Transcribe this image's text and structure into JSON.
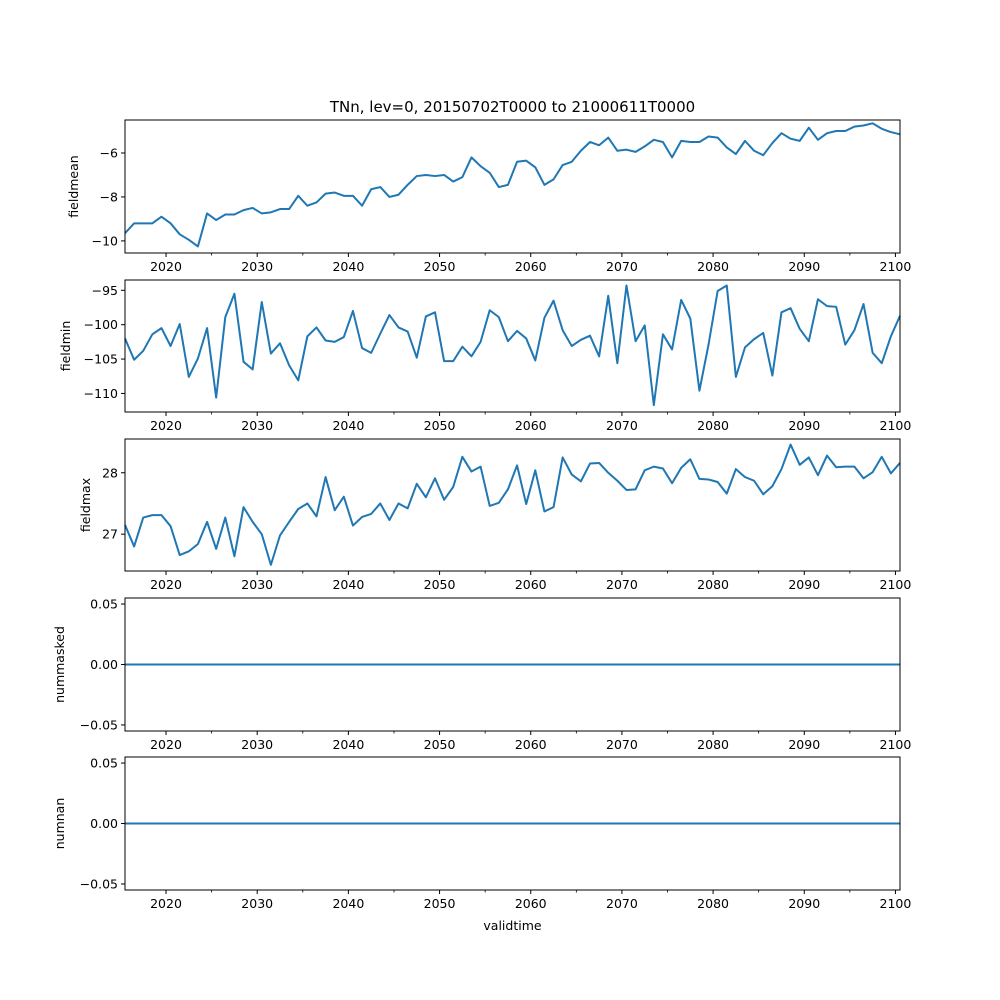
{
  "chart_data": {
    "title": "TNn, lev=0, 20150702T0000 to 21000611T0000",
    "xlabel": "validtime",
    "line_color": "#1f77b4",
    "x": {
      "xlim": [
        2015.5,
        2100.5
      ],
      "major_ticks": [
        2020,
        2030,
        2040,
        2050,
        2060,
        2070,
        2080,
        2090,
        2100
      ],
      "major_tick_labels": [
        "2020",
        "2030",
        "2040",
        "2050",
        "2060",
        "2070",
        "2080",
        "2090",
        "2100"
      ],
      "minor_tick_step": 5,
      "years": [
        2015,
        2016,
        2017,
        2018,
        2019,
        2020,
        2021,
        2022,
        2023,
        2024,
        2025,
        2026,
        2027,
        2028,
        2029,
        2030,
        2031,
        2032,
        2033,
        2034,
        2035,
        2036,
        2037,
        2038,
        2039,
        2040,
        2041,
        2042,
        2043,
        2044,
        2045,
        2046,
        2047,
        2048,
        2049,
        2050,
        2051,
        2052,
        2053,
        2054,
        2055,
        2056,
        2057,
        2058,
        2059,
        2060,
        2061,
        2062,
        2063,
        2064,
        2065,
        2066,
        2067,
        2068,
        2069,
        2070,
        2071,
        2072,
        2073,
        2074,
        2075,
        2076,
        2077,
        2078,
        2079,
        2080,
        2081,
        2082,
        2083,
        2084,
        2085,
        2086,
        2087,
        2088,
        2089,
        2090,
        2091,
        2092,
        2093,
        2094,
        2095,
        2096,
        2097,
        2098,
        2099,
        2100
      ],
      "sample_offset": 0.5
    },
    "panels": [
      {
        "type": "line",
        "ylabel": "fieldmean",
        "ylim": [
          -10.55,
          -4.5
        ],
        "yticks": [
          -10,
          -8,
          -6
        ],
        "ytick_labels": [
          "−10",
          "−8",
          "−6"
        ],
        "values": [
          -9.65,
          -9.2,
          -9.2,
          -9.2,
          -8.9,
          -9.2,
          -9.7,
          -9.95,
          -10.25,
          -8.75,
          -9.05,
          -8.8,
          -8.8,
          -8.6,
          -8.5,
          -8.75,
          -8.7,
          -8.55,
          -8.55,
          -7.95,
          -8.4,
          -8.25,
          -7.85,
          -7.8,
          -7.95,
          -7.95,
          -8.4,
          -7.65,
          -7.55,
          -8.0,
          -7.9,
          -7.45,
          -7.05,
          -7.0,
          -7.05,
          -7.0,
          -7.3,
          -7.1,
          -6.2,
          -6.6,
          -6.9,
          -7.55,
          -7.45,
          -6.4,
          -6.35,
          -6.65,
          -7.45,
          -7.2,
          -6.55,
          -6.4,
          -5.9,
          -5.5,
          -5.65,
          -5.3,
          -5.9,
          -5.85,
          -5.95,
          -5.7,
          -5.4,
          -5.5,
          -6.2,
          -5.45,
          -5.5,
          -5.5,
          -5.25,
          -5.3,
          -5.75,
          -6.05,
          -5.45,
          -5.9,
          -6.1,
          -5.55,
          -5.1,
          -5.35,
          -5.45,
          -4.85,
          -5.4,
          -5.1,
          -5.0,
          -5.0,
          -4.8,
          -4.75,
          -4.65,
          -4.9,
          -5.05,
          -5.15
        ]
      },
      {
        "type": "line",
        "ylabel": "fieldmin",
        "ylim": [
          -112.7,
          -93.5
        ],
        "yticks": [
          -110,
          -105,
          -100,
          -95
        ],
        "ytick_labels": [
          "−110",
          "−105",
          "−100",
          "−95"
        ],
        "values": [
          -102,
          -105.1,
          -103.8,
          -101.4,
          -100.5,
          -103.1,
          -99.9,
          -107.6,
          -104.9,
          -100.5,
          -110.6,
          -98.9,
          -95.5,
          -105.4,
          -106.5,
          -96.7,
          -104.2,
          -102.7,
          -105.9,
          -108.1,
          -101.7,
          -100.4,
          -102.3,
          -102.5,
          -101.8,
          -98.0,
          -103.4,
          -104.1,
          -101.3,
          -98.6,
          -100.4,
          -101.0,
          -104.8,
          -98.8,
          -98.2,
          -105.3,
          -105.3,
          -103.2,
          -104.6,
          -102.5,
          -97.9,
          -98.9,
          -102.4,
          -100.9,
          -102.0,
          -105.2,
          -99.0,
          -96.5,
          -100.8,
          -103.1,
          -102.2,
          -101.6,
          -104.6,
          -95.8,
          -105.6,
          -94.3,
          -102.4,
          -100.1,
          -111.7,
          -101.4,
          -103.6,
          -96.4,
          -99.1,
          -109.6,
          -102.9,
          -95.1,
          -94.3,
          -107.6,
          -103.3,
          -102.1,
          -101.2,
          -107.4,
          -98.2,
          -97.6,
          -100.6,
          -102.4,
          -96.3,
          -97.3,
          -97.4,
          -102.9,
          -100.8,
          -97.0,
          -104.1,
          -105.6,
          -101.7,
          -98.7
        ]
      },
      {
        "type": "line",
        "ylabel": "fieldmax",
        "ylim": [
          26.4,
          28.55
        ],
        "yticks": [
          27,
          28
        ],
        "ytick_labels": [
          "27",
          "28"
        ],
        "values": [
          27.15,
          26.8,
          27.27,
          27.31,
          27.31,
          27.13,
          26.66,
          26.72,
          26.84,
          27.2,
          26.76,
          27.27,
          26.64,
          27.44,
          27.2,
          27.0,
          26.5,
          26.98,
          27.2,
          27.41,
          27.5,
          27.29,
          27.93,
          27.39,
          27.61,
          27.14,
          27.28,
          27.33,
          27.5,
          27.23,
          27.5,
          27.42,
          27.82,
          27.6,
          27.91,
          27.56,
          27.77,
          28.26,
          28.02,
          28.1,
          27.46,
          27.51,
          27.73,
          28.12,
          27.49,
          28.04,
          27.37,
          27.44,
          28.25,
          27.97,
          27.86,
          28.15,
          28.16,
          28.0,
          27.87,
          27.72,
          27.73,
          28.04,
          28.1,
          28.07,
          27.83,
          28.08,
          28.22,
          27.9,
          27.89,
          27.85,
          27.66,
          28.06,
          27.93,
          27.87,
          27.65,
          27.78,
          28.06,
          28.46,
          28.13,
          28.25,
          27.96,
          28.28,
          28.09,
          28.1,
          28.1,
          27.91,
          28.01,
          28.26,
          27.99,
          28.16
        ]
      },
      {
        "type": "line",
        "ylabel": "nummasked",
        "ylim": [
          -0.055,
          0.055
        ],
        "yticks": [
          -0.05,
          0.0,
          0.05
        ],
        "ytick_labels": [
          "−0.05",
          "0.00",
          "0.05"
        ],
        "constant_value": 0.0
      },
      {
        "type": "line",
        "ylabel": "numnan",
        "ylim": [
          -0.055,
          0.055
        ],
        "yticks": [
          -0.05,
          0.0,
          0.05
        ],
        "ytick_labels": [
          "−0.05",
          "0.00",
          "0.05"
        ],
        "constant_value": 0.0
      }
    ]
  }
}
